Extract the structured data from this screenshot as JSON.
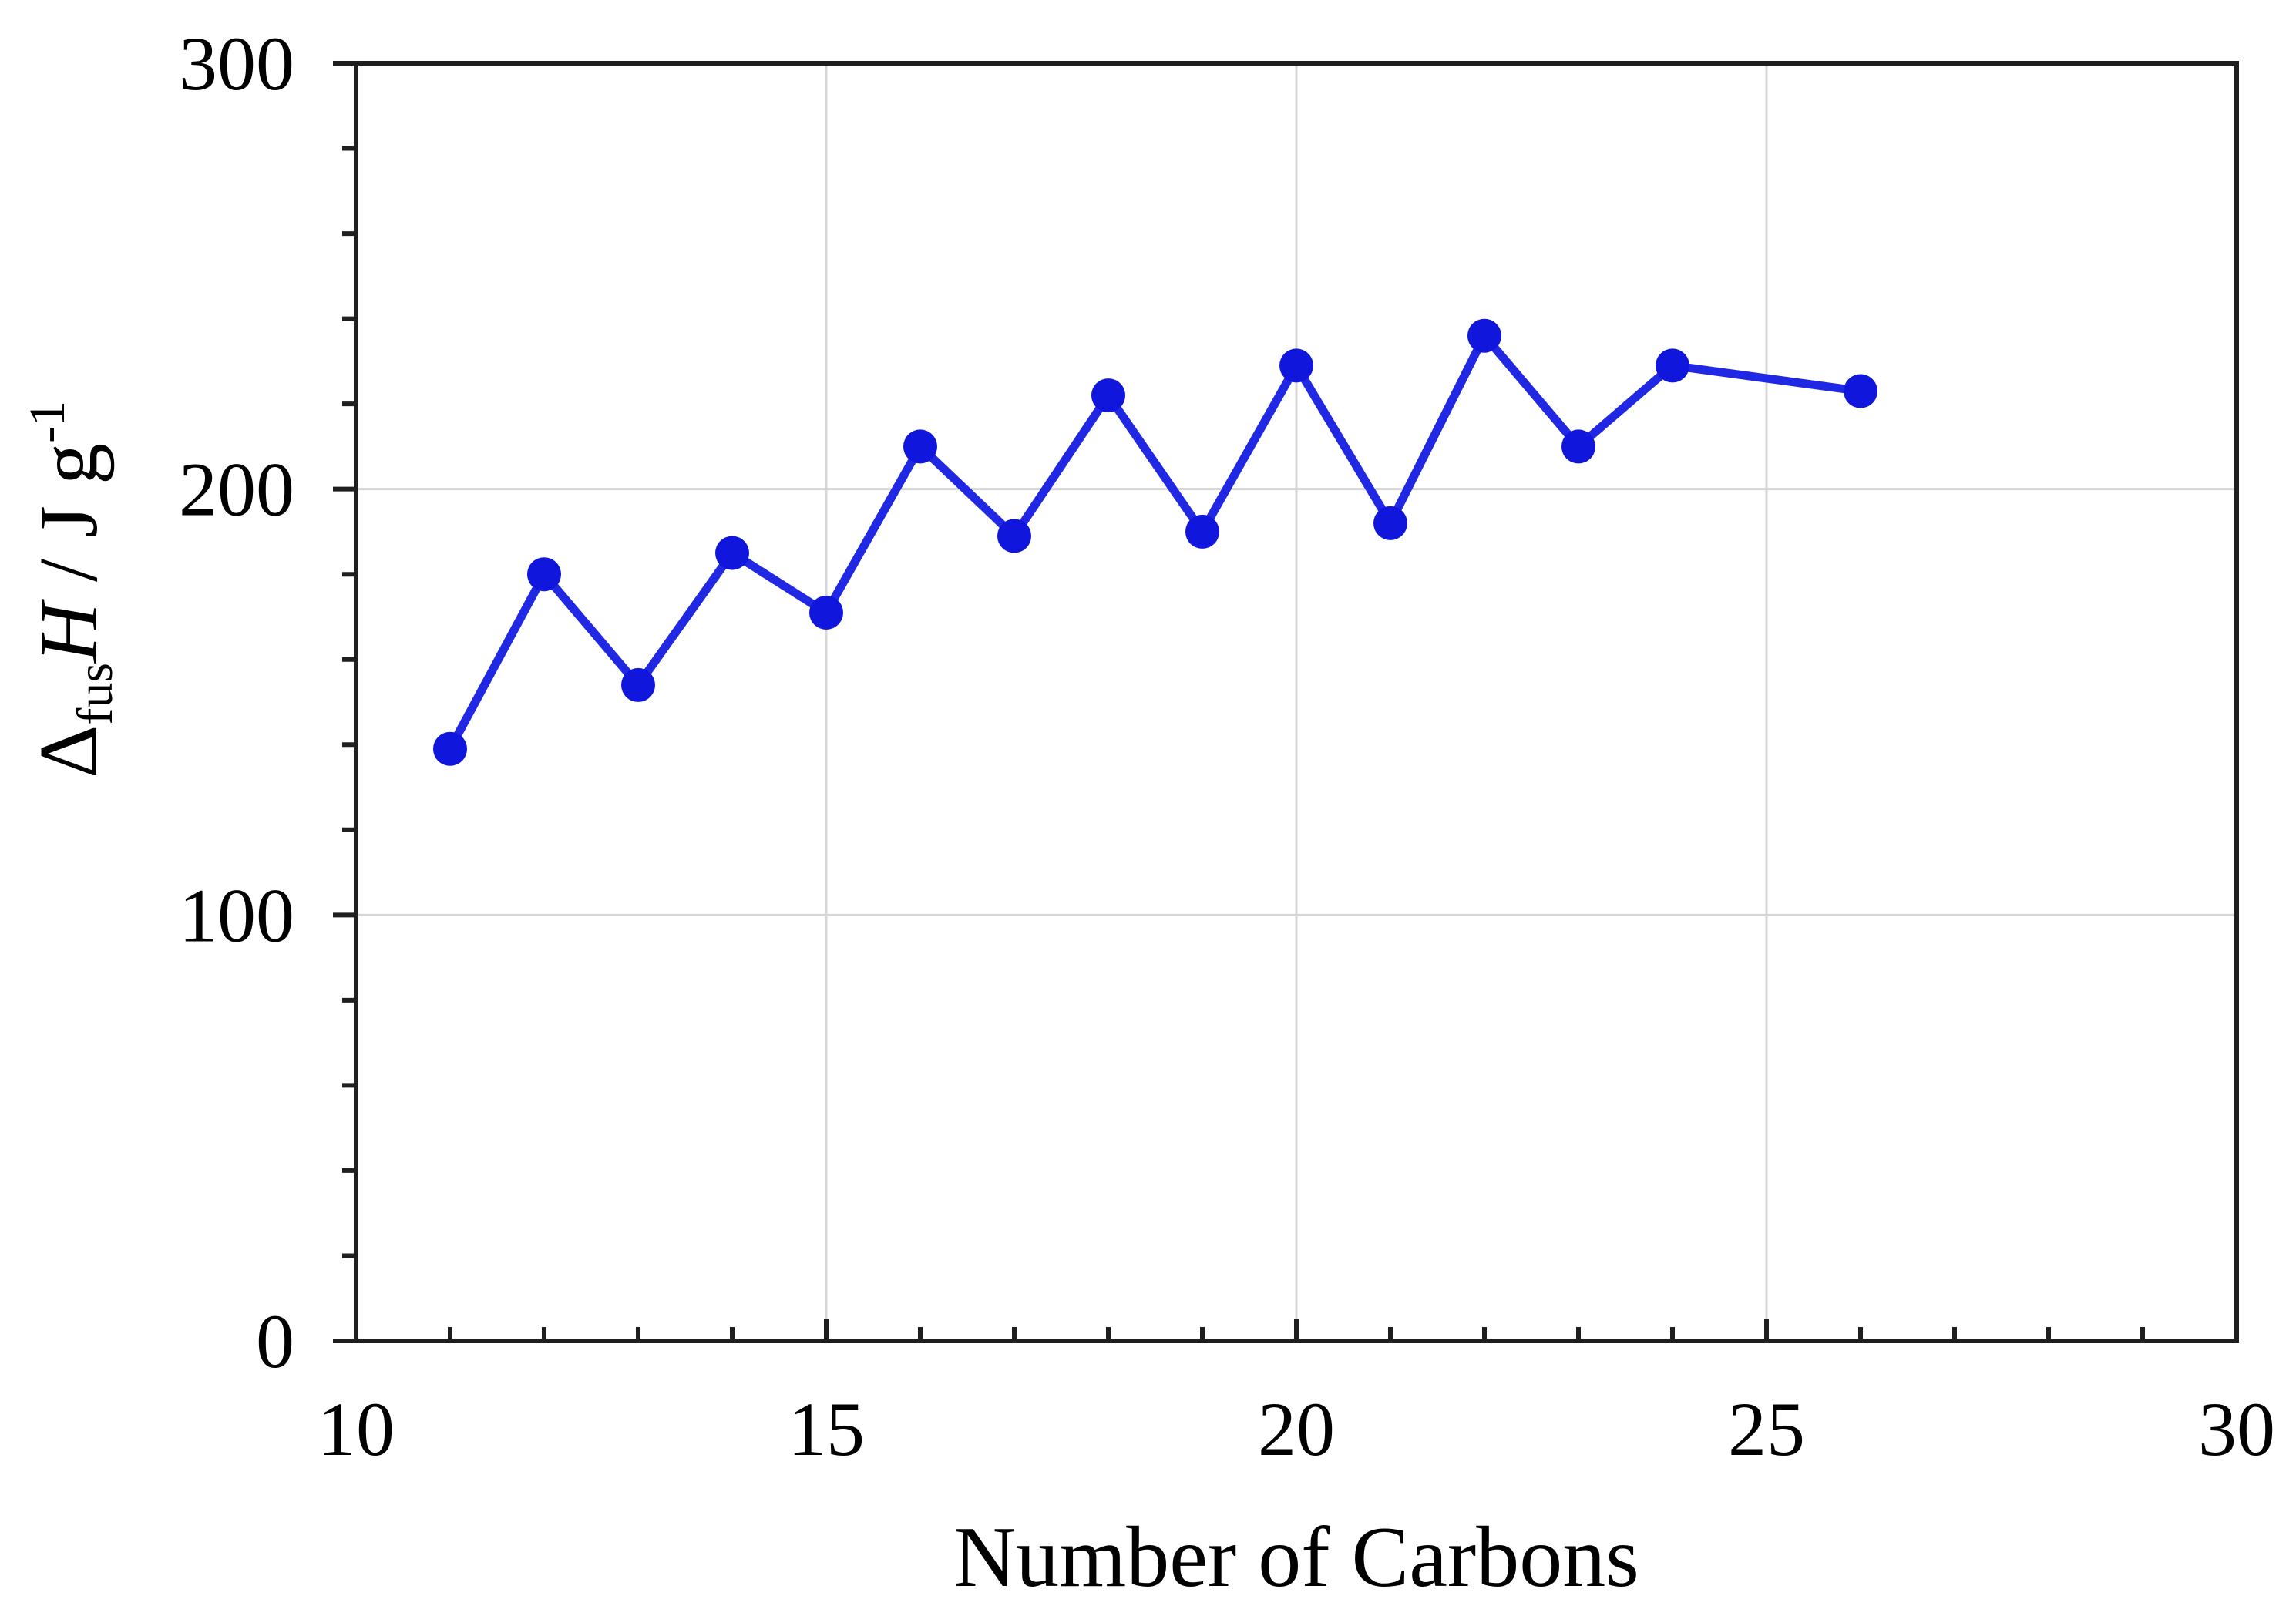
{
  "chart_data": {
    "type": "line",
    "xlabel": "Number of Carbons",
    "ylabel_text": "ΔfusH / J g-1",
    "ylabel_parts": {
      "delta": "Δ",
      "sub": "fus",
      "symbol": "H",
      "divider": " / J g",
      "sup": "-1"
    },
    "x": [
      11,
      12,
      13,
      14,
      15,
      16,
      17,
      18,
      19,
      20,
      21,
      22,
      23,
      24,
      26
    ],
    "y": [
      139,
      180,
      154,
      185,
      171,
      210,
      189,
      222,
      190,
      229,
      192,
      236,
      210,
      229,
      223
    ],
    "xlim": [
      10,
      30
    ],
    "ylim": [
      0,
      300
    ],
    "x_major_ticks": [
      10,
      15,
      20,
      25,
      30
    ],
    "x_tick_labels": [
      "10",
      "15",
      "20",
      "25",
      "30"
    ],
    "x_minor_step": 1,
    "y_major_ticks": [
      0,
      100,
      200,
      300
    ],
    "y_tick_labels": [
      "0",
      "100",
      "200",
      "300"
    ],
    "y_minor_step": 20,
    "grid_x_at": [
      15,
      20,
      25
    ],
    "grid_y_at": [
      100,
      200
    ],
    "legend": "none",
    "grid": "major-light-gray",
    "marker": "filled-circle"
  },
  "colors": {
    "background": "#ffffff",
    "axis": "#1f1f1f",
    "grid": "#d6d6d6",
    "line": "#2128e3",
    "marker": "#1116dc",
    "text": "#000000"
  }
}
